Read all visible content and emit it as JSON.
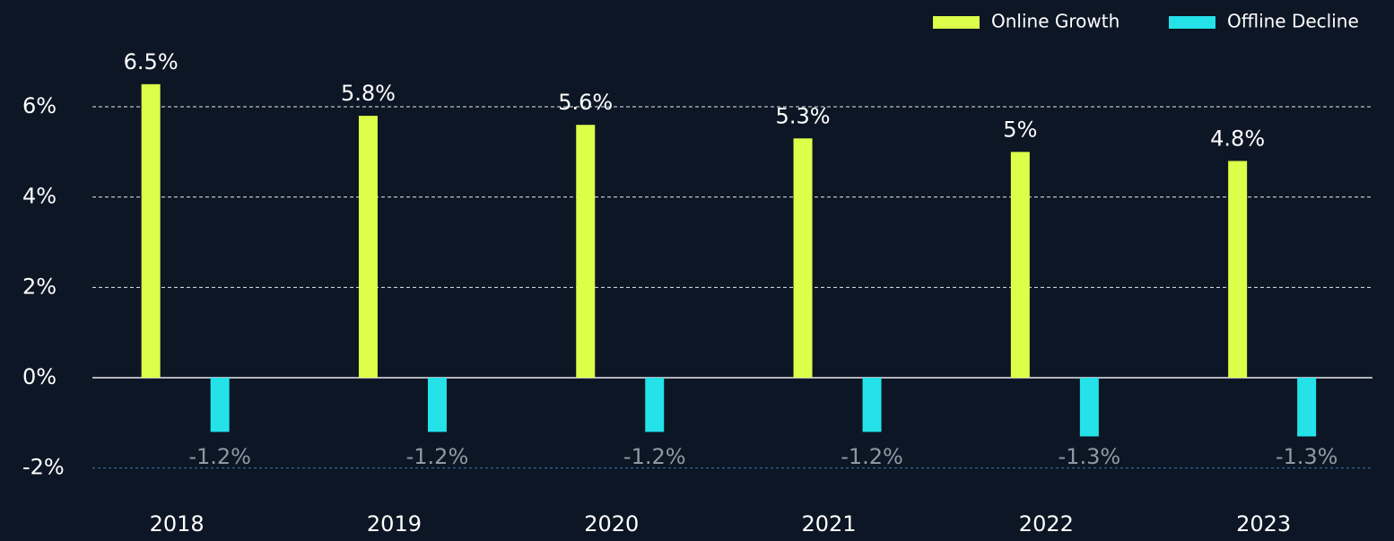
{
  "chart_data": {
    "type": "bar",
    "categories": [
      "2018",
      "2019",
      "2020",
      "2021",
      "2022",
      "2023"
    ],
    "series": [
      {
        "name": "Online Growth",
        "color": "#dcff4a",
        "values": [
          6.5,
          5.8,
          5.6,
          5.3,
          5,
          4.8
        ],
        "value_labels": [
          "6.5%",
          "5.8%",
          "5.6%",
          "5.3%",
          "5%",
          "4.8%"
        ]
      },
      {
        "name": "Offline Decline",
        "color": "#24e2e8",
        "values": [
          -1.2,
          -1.2,
          -1.2,
          -1.2,
          -1.3,
          -1.3
        ],
        "value_labels": [
          "-1.2%",
          "-1.2%",
          "-1.2%",
          "-1.2%",
          "-1.3%",
          "-1.3%"
        ]
      }
    ],
    "ylim": [
      -2,
      7
    ],
    "yticks": [
      {
        "value": -2,
        "label": "-2%"
      },
      {
        "value": 0,
        "label": "0%"
      },
      {
        "value": 2,
        "label": "2%"
      },
      {
        "value": 4,
        "label": "4%"
      },
      {
        "value": 6,
        "label": "6%"
      }
    ],
    "grid": true,
    "legend": "top-right"
  }
}
